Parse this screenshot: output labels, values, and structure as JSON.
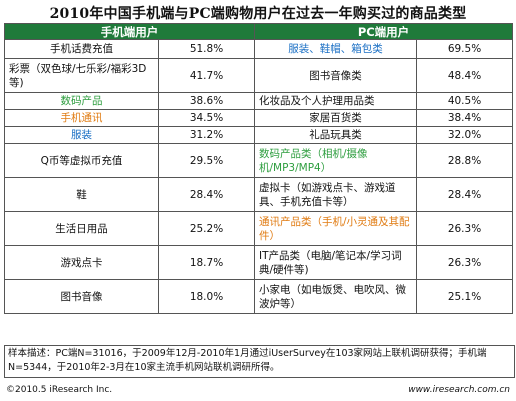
{
  "title": "2010年中国手机端与PC端购物用户在过去一年购买过的商品类型",
  "chart_data": {
    "type": "table",
    "columns": [
      "手机端用户",
      "PC端用户"
    ],
    "rows": [
      {
        "left_item": "手机话费充值",
        "left_color": "#111111",
        "left_pct": "51.8%",
        "right_item": "服装、鞋帽、箱包类",
        "right_color": "#1a6fc4",
        "right_pct": "69.5%"
      },
      {
        "left_item": "彩票（双色球/七乐彩/福彩3D等)",
        "left_color": "#111111",
        "left_pct": "41.7%",
        "right_item": "图书音像类",
        "right_color": "#111111",
        "right_pct": "48.4%"
      },
      {
        "left_item": "数码产品",
        "left_color": "#2e9e3f",
        "left_pct": "38.6%",
        "right_item": "化妆品及个人护理用品类",
        "right_color": "#111111",
        "right_pct": "40.5%"
      },
      {
        "left_item": "手机通讯",
        "left_color": "#e07b12",
        "left_pct": "34.5%",
        "right_item": "家居百货类",
        "right_color": "#111111",
        "right_pct": "38.4%"
      },
      {
        "left_item": "服装",
        "left_color": "#1a6fc4",
        "left_pct": "31.2%",
        "right_item": "礼品玩具类",
        "right_color": "#111111",
        "right_pct": "32.0%"
      },
      {
        "left_item": "Q币等虚拟币充值",
        "left_color": "#111111",
        "left_pct": "29.5%",
        "right_item": "数码产品类（相机/摄像机/MP3/MP4）",
        "right_color": "#2e9e3f",
        "right_pct": "28.8%"
      },
      {
        "left_item": "鞋",
        "left_color": "#111111",
        "left_pct": "28.4%",
        "right_item": "虚拟卡（如游戏点卡、游戏道具、手机充值卡等）",
        "right_color": "#111111",
        "right_pct": "28.4%"
      },
      {
        "left_item": "生活日用品",
        "left_color": "#111111",
        "left_pct": "25.2%",
        "right_item": "通讯产品类（手机/小灵通及其配件）",
        "right_color": "#e07b12",
        "right_pct": "26.3%"
      },
      {
        "left_item": "游戏点卡",
        "left_color": "#111111",
        "left_pct": "18.7%",
        "right_item": "IT产品类（电脑/笔记本/学习词典/硬件等)",
        "right_color": "#111111",
        "right_pct": "26.3%"
      },
      {
        "left_item": "图书音像",
        "left_color": "#111111",
        "left_pct": "18.0%",
        "right_item": "小家电（如电饭煲、电吹风、微波炉等）",
        "right_color": "#111111",
        "right_pct": "25.1%"
      }
    ]
  },
  "sample_note": "样本描述：PC端N=31016，于2009年12月-2010年1月通过iUserSurvey在103家网站上联机调研获得；手机端N=5344，于2010年2-3月在10家主流手机网站联机调研所得。",
  "footer": {
    "copyright": "©2010.5 iResearch Inc.",
    "website": "www.iresearch.com.cn"
  }
}
